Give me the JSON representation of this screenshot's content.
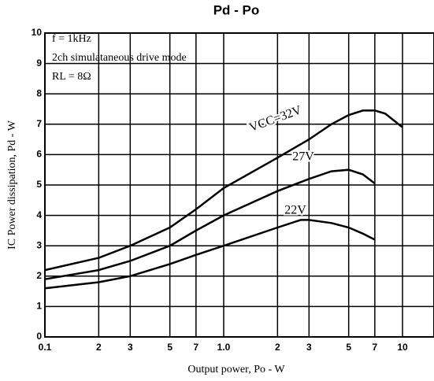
{
  "chart_data": {
    "type": "line",
    "title": "Pd - Po",
    "xlabel": "Output power, Po - W",
    "ylabel": "IC Power dissipation, Pd - W",
    "annotations": [
      "f = 1kHz",
      "2ch simulataneous drive mode",
      "RL = 8Ω"
    ],
    "xscale": "log",
    "xlim": [
      0.1,
      15
    ],
    "ylim": [
      0,
      10
    ],
    "xticks": [
      0.1,
      {
        "value": 0.2,
        "label": "2"
      },
      {
        "value": 0.3,
        "label": "3"
      },
      {
        "value": 0.5,
        "label": "5"
      },
      {
        "value": 0.7,
        "label": "7"
      },
      {
        "value": 1,
        "label": "1.0"
      },
      2,
      3,
      5,
      7,
      10
    ],
    "yticks": [
      0,
      1,
      2,
      3,
      4,
      5,
      6,
      7,
      8,
      9,
      10
    ],
    "grid": true,
    "series": [
      {
        "name": "VCC=32V",
        "color": "#000000",
        "x": [
          0.1,
          0.2,
          0.3,
          0.5,
          0.7,
          1,
          2,
          3,
          4,
          5,
          6,
          7,
          8,
          10
        ],
        "values": [
          2.2,
          2.6,
          3.0,
          3.6,
          4.2,
          4.9,
          5.9,
          6.5,
          7.0,
          7.3,
          7.45,
          7.45,
          7.35,
          6.9
        ]
      },
      {
        "name": "27V",
        "color": "#000000",
        "x": [
          0.1,
          0.2,
          0.3,
          0.5,
          0.7,
          1,
          2,
          3,
          4,
          5,
          6,
          7
        ],
        "values": [
          1.9,
          2.2,
          2.5,
          3.0,
          3.5,
          4.0,
          4.8,
          5.2,
          5.45,
          5.5,
          5.35,
          5.05
        ]
      },
      {
        "name": "22V",
        "color": "#000000",
        "x": [
          0.1,
          0.2,
          0.3,
          0.5,
          0.7,
          1,
          2,
          2.7,
          3,
          4,
          5,
          6,
          7
        ],
        "values": [
          1.6,
          1.8,
          2.0,
          2.4,
          2.7,
          3.0,
          3.6,
          3.85,
          3.85,
          3.75,
          3.6,
          3.4,
          3.2
        ]
      }
    ]
  }
}
